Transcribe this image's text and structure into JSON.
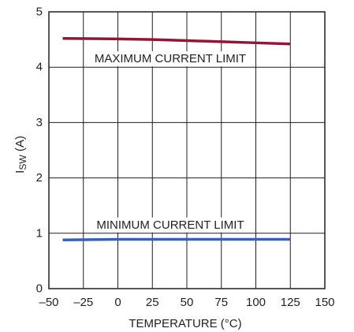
{
  "chart_data": {
    "type": "line",
    "title": "",
    "xlabel": "TEMPERATURE (°C)",
    "ylabel_main": "I",
    "ylabel_sub": "SW",
    "ylabel_unit": " (A)",
    "xlim": [
      -50,
      150
    ],
    "ylim": [
      0,
      5
    ],
    "xticks": [
      -50,
      -25,
      0,
      25,
      50,
      75,
      100,
      125,
      150
    ],
    "xtick_labels": [
      "–50",
      "–25",
      "0",
      "25",
      "50",
      "75",
      "100",
      "125",
      "150"
    ],
    "yticks": [
      0,
      1,
      2,
      3,
      4,
      5
    ],
    "ytick_labels": [
      "0",
      "1",
      "2",
      "3",
      "4",
      "5"
    ],
    "grid": true,
    "series": [
      {
        "name": "MAXIMUM CURRENT LIMIT",
        "color": "#8b1a3a",
        "x": [
          -40,
          0,
          25,
          50,
          75,
          100,
          125
        ],
        "y": [
          4.52,
          4.51,
          4.5,
          4.48,
          4.46,
          4.44,
          4.42
        ]
      },
      {
        "name": "MINIMUM CURRENT LIMIT",
        "color": "#3a63ad",
        "x": [
          -40,
          0,
          25,
          50,
          75,
          100,
          125
        ],
        "y": [
          0.88,
          0.89,
          0.89,
          0.89,
          0.89,
          0.89,
          0.89
        ]
      }
    ],
    "annotations": [
      {
        "text": "MAXIMUM CURRENT LIMIT",
        "x": 38,
        "y": 4.15
      },
      {
        "text": "MINIMUM CURRENT LIMIT",
        "x": 38,
        "y": 1.15
      }
    ]
  }
}
